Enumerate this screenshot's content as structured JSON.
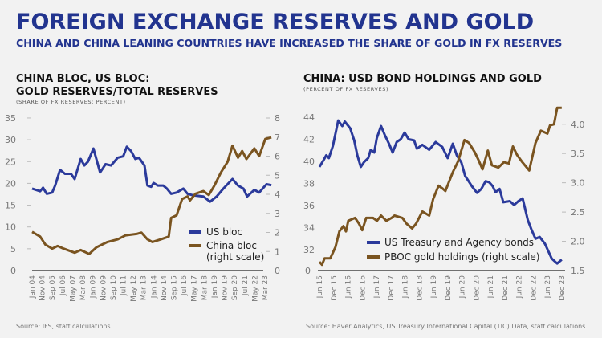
{
  "header": {
    "title": "FOREIGN EXCHANGE RESERVES AND GOLD",
    "subtitle": "CHINA AND CHINA LEANING COUNTRIES HAVE INCREASED THE SHARE OF GOLD IN FX RESERVES"
  },
  "colors": {
    "title": "#22348f",
    "blue_series": "#2b3a9b",
    "brown_series": "#7a5420",
    "background": "#f2f2f2"
  },
  "chart_data": [
    {
      "type": "line",
      "title_line1": "CHINA BLOC, US BLOC:",
      "title_line2": "GOLD RESERVES/TOTAL RESERVES",
      "subtitle": "(SHARE OF FX RESERVES; PERCENT)",
      "source": "Source: IFS, staff calculations",
      "y_left_ticks": [
        "0",
        "5",
        "10",
        "15",
        "20",
        "25",
        "30",
        "35"
      ],
      "y_left_range": [
        0,
        35
      ],
      "y_right_ticks": [
        "0",
        "1",
        "2",
        "3",
        "4",
        "5",
        "6",
        "7",
        "8"
      ],
      "y_right_range": [
        0,
        8
      ],
      "x_tick_labels": [
        "Jan 04",
        "Nov 04",
        "Sep 05",
        "Jul 06",
        "May 07",
        "Mar 08",
        "Jan 09",
        "Nov 09",
        "Sep 10",
        "Jul 11",
        "May 12",
        "Mar 13",
        "Jan 14",
        "Nov 14",
        "Sep 15",
        "Jul 16",
        "May 17",
        "Mar 18",
        "Jan 19",
        "Nov 19",
        "Sep 20",
        "Jul 21",
        "May 22",
        "Mar 23"
      ],
      "legend": {
        "us": "US bloc",
        "china": "China bloc",
        "china_note": "(right scale)"
      },
      "series": [
        {
          "name": "US bloc",
          "axis": "left",
          "points": [
            [
              2004.0,
              18.8
            ],
            [
              2004.66,
              18.2
            ],
            [
              2004.9,
              19
            ],
            [
              2005.2,
              17.6
            ],
            [
              2005.65,
              17.9
            ],
            [
              2005.9,
              19.5
            ],
            [
              2006.3,
              23.1
            ],
            [
              2006.7,
              22.2
            ],
            [
              2007.2,
              22.2
            ],
            [
              2007.5,
              21
            ],
            [
              2008.0,
              25.6
            ],
            [
              2008.3,
              24.1
            ],
            [
              2008.6,
              25
            ],
            [
              2009.05,
              28
            ],
            [
              2009.6,
              22.5
            ],
            [
              2010.05,
              24.4
            ],
            [
              2010.5,
              24.1
            ],
            [
              2011.05,
              25.9
            ],
            [
              2011.5,
              26.2
            ],
            [
              2011.8,
              28.4
            ],
            [
              2012.15,
              27.4
            ],
            [
              2012.5,
              25.6
            ],
            [
              2012.8,
              25.9
            ],
            [
              2013.25,
              24.1
            ],
            [
              2013.5,
              19.5
            ],
            [
              2013.8,
              19.2
            ],
            [
              2014.0,
              20.1
            ],
            [
              2014.35,
              19.5
            ],
            [
              2014.8,
              19.5
            ],
            [
              2015.1,
              18.8
            ],
            [
              2015.45,
              17.6
            ],
            [
              2015.9,
              17.9
            ],
            [
              2016.45,
              18.8
            ],
            [
              2016.8,
              17.6
            ],
            [
              2017.2,
              17.3
            ],
            [
              2018.1,
              17
            ],
            [
              2018.65,
              15.8
            ],
            [
              2019.2,
              17
            ],
            [
              2019.75,
              18.8
            ],
            [
              2020.5,
              21
            ],
            [
              2020.95,
              19.5
            ],
            [
              2021.4,
              18.8
            ],
            [
              2021.7,
              17
            ],
            [
              2022.3,
              18.5
            ],
            [
              2022.7,
              17.9
            ],
            [
              2023.3,
              19.8
            ],
            [
              2023.7,
              19.6
            ]
          ]
        },
        {
          "name": "China bloc",
          "axis": "right",
          "points": [
            [
              2004.0,
              2.03
            ],
            [
              2004.66,
              1.78
            ],
            [
              2005.1,
              1.36
            ],
            [
              2005.65,
              1.15
            ],
            [
              2006.1,
              1.29
            ],
            [
              2006.6,
              1.15
            ],
            [
              2007.5,
              0.94
            ],
            [
              2008.0,
              1.08
            ],
            [
              2008.7,
              0.87
            ],
            [
              2009.3,
              1.22
            ],
            [
              2010.2,
              1.5
            ],
            [
              2011.05,
              1.64
            ],
            [
              2011.7,
              1.85
            ],
            [
              2012.6,
              1.92
            ],
            [
              2013.0,
              1.99
            ],
            [
              2013.5,
              1.64
            ],
            [
              2013.9,
              1.5
            ],
            [
              2014.6,
              1.64
            ],
            [
              2015.25,
              1.78
            ],
            [
              2015.45,
              2.76
            ],
            [
              2015.9,
              2.9
            ],
            [
              2016.35,
              3.75
            ],
            [
              2016.8,
              3.89
            ],
            [
              2017.0,
              3.68
            ],
            [
              2017.45,
              4.03
            ],
            [
              2018.1,
              4.17
            ],
            [
              2018.55,
              3.96
            ],
            [
              2019.0,
              4.45
            ],
            [
              2019.55,
              5.15
            ],
            [
              2020.1,
              5.71
            ],
            [
              2020.5,
              6.55
            ],
            [
              2020.95,
              5.92
            ],
            [
              2021.3,
              6.27
            ],
            [
              2021.65,
              5.85
            ],
            [
              2022.3,
              6.41
            ],
            [
              2022.7,
              6.0
            ],
            [
              2023.2,
              6.9
            ],
            [
              2023.7,
              6.98
            ]
          ]
        }
      ]
    },
    {
      "type": "line",
      "title": "CHINA: USD BOND HOLDINGS AND GOLD",
      "subtitle": "(PERCENT OF FX RESERVES)",
      "source": "Source: Haver Analytics, US Treasury International Capital (TIC) Data, staff calculations",
      "y_left_ticks": [
        "32",
        "34",
        "36",
        "38",
        "40",
        "42",
        "44"
      ],
      "y_left_zero_label": "0",
      "y_left_range": [
        32,
        44
      ],
      "y_right_ticks": [
        "1.5",
        "2.0",
        "2.5",
        "3.0",
        "3.5",
        "4.0"
      ],
      "y_right_range": [
        1.5,
        4.3
      ],
      "x_tick_labels": [
        "Jun 15",
        "Dec 15",
        "Jun 16",
        "Dec 16",
        "Jun 17",
        "Dec 17",
        "Jun 18",
        "Dec 18",
        "Jun 19",
        "Dec 19",
        "Jun 20",
        "Dec 20",
        "Jun 21",
        "Dec 21",
        "Jun 22",
        "Dec 22",
        "Jun 23",
        "Dec 23"
      ],
      "legend": {
        "us": "US Treasury and Agency bonds",
        "gold": "PBOC gold holdings (right scale)"
      },
      "series": [
        {
          "name": "US Treasury and Agency bonds",
          "axis": "left",
          "points": [
            [
              2015.42,
              39.5
            ],
            [
              2015.56,
              40.1
            ],
            [
              2015.66,
              40.55
            ],
            [
              2015.75,
              40.3
            ],
            [
              2015.89,
              41.4
            ],
            [
              2016.08,
              43.7
            ],
            [
              2016.22,
              43.2
            ],
            [
              2016.31,
              43.6
            ],
            [
              2016.5,
              43
            ],
            [
              2016.64,
              41.9
            ],
            [
              2016.75,
              40.55
            ],
            [
              2016.87,
              39.5
            ],
            [
              2016.99,
              39.95
            ],
            [
              2017.13,
              40.3
            ],
            [
              2017.22,
              41.05
            ],
            [
              2017.34,
              40.8
            ],
            [
              2017.43,
              42.1
            ],
            [
              2017.58,
              43.2
            ],
            [
              2017.72,
              42.35
            ],
            [
              2017.86,
              41.6
            ],
            [
              2017.99,
              40.8
            ],
            [
              2018.13,
              41.75
            ],
            [
              2018.27,
              42
            ],
            [
              2018.41,
              42.6
            ],
            [
              2018.55,
              42
            ],
            [
              2018.74,
              41.9
            ],
            [
              2018.84,
              41.15
            ],
            [
              2019.03,
              41.5
            ],
            [
              2019.27,
              41.05
            ],
            [
              2019.5,
              41.75
            ],
            [
              2019.73,
              41.3
            ],
            [
              2019.92,
              40.3
            ],
            [
              2020.1,
              41.6
            ],
            [
              2020.24,
              40.55
            ],
            [
              2020.4,
              39.9
            ],
            [
              2020.53,
              38.7
            ],
            [
              2020.77,
              37.75
            ],
            [
              2020.95,
              37.15
            ],
            [
              2021.1,
              37.5
            ],
            [
              2021.25,
              38.2
            ],
            [
              2021.38,
              38.1
            ],
            [
              2021.5,
              37.75
            ],
            [
              2021.6,
              37.2
            ],
            [
              2021.74,
              37.5
            ],
            [
              2021.87,
              36.3
            ],
            [
              2022.1,
              36.4
            ],
            [
              2022.25,
              36.05
            ],
            [
              2022.4,
              36.4
            ],
            [
              2022.55,
              36.65
            ],
            [
              2022.73,
              34.7
            ],
            [
              2022.87,
              33.75
            ],
            [
              2023.0,
              33
            ],
            [
              2023.15,
              33.15
            ],
            [
              2023.33,
              32.55
            ],
            [
              2023.57,
              31.2
            ],
            [
              2023.76,
              30.75
            ],
            [
              2023.92,
              31.1
            ]
          ]
        },
        {
          "name": "PBOC gold holdings",
          "axis": "right",
          "points": [
            [
              2015.42,
              1.65
            ],
            [
              2015.51,
              1.6
            ],
            [
              2015.6,
              1.71
            ],
            [
              2015.8,
              1.71
            ],
            [
              2015.98,
              1.9
            ],
            [
              2016.12,
              2.17
            ],
            [
              2016.26,
              2.26
            ],
            [
              2016.35,
              2.17
            ],
            [
              2016.43,
              2.35
            ],
            [
              2016.67,
              2.4
            ],
            [
              2016.81,
              2.3
            ],
            [
              2016.92,
              2.19
            ],
            [
              2017.06,
              2.4
            ],
            [
              2017.3,
              2.4
            ],
            [
              2017.44,
              2.35
            ],
            [
              2017.58,
              2.44
            ],
            [
              2017.77,
              2.35
            ],
            [
              2017.95,
              2.4
            ],
            [
              2018.05,
              2.44
            ],
            [
              2018.33,
              2.4
            ],
            [
              2018.48,
              2.3
            ],
            [
              2018.67,
              2.22
            ],
            [
              2018.81,
              2.3
            ],
            [
              2019.03,
              2.51
            ],
            [
              2019.27,
              2.44
            ],
            [
              2019.41,
              2.72
            ],
            [
              2019.6,
              2.95
            ],
            [
              2019.74,
              2.9
            ],
            [
              2019.84,
              2.86
            ],
            [
              2020.1,
              3.18
            ],
            [
              2020.28,
              3.36
            ],
            [
              2020.51,
              3.73
            ],
            [
              2020.67,
              3.68
            ],
            [
              2020.87,
              3.52
            ],
            [
              2021.0,
              3.39
            ],
            [
              2021.14,
              3.23
            ],
            [
              2021.33,
              3.55
            ],
            [
              2021.47,
              3.3
            ],
            [
              2021.7,
              3.26
            ],
            [
              2021.89,
              3.35
            ],
            [
              2022.07,
              3.33
            ],
            [
              2022.21,
              3.62
            ],
            [
              2022.35,
              3.48
            ],
            [
              2022.54,
              3.35
            ],
            [
              2022.78,
              3.21
            ],
            [
              2023.0,
              3.68
            ],
            [
              2023.19,
              3.89
            ],
            [
              2023.42,
              3.84
            ],
            [
              2023.51,
              3.98
            ],
            [
              2023.65,
              4.0
            ],
            [
              2023.76,
              4.28
            ],
            [
              2023.92,
              4.28
            ]
          ]
        }
      ]
    }
  ]
}
